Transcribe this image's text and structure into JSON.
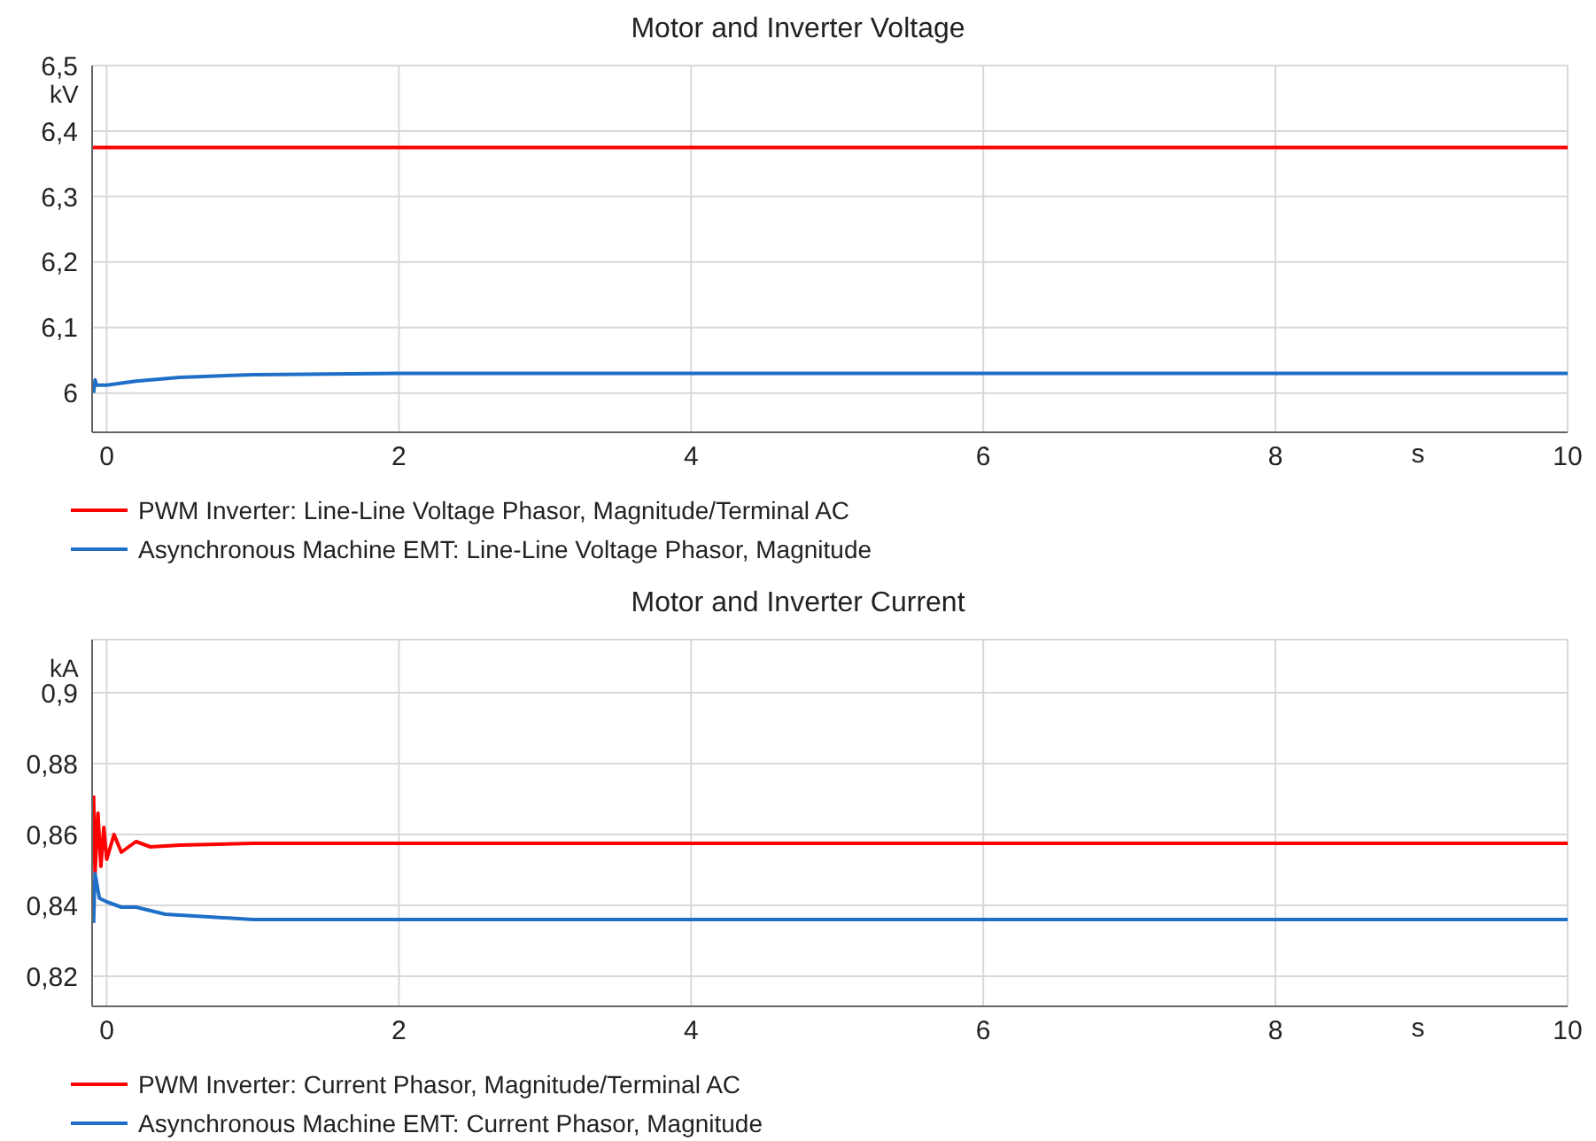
{
  "chart_data": [
    {
      "type": "line",
      "title": "Motor and Inverter Voltage",
      "xlabel": "s",
      "ylabel": "kV",
      "xlim": [
        -0.1,
        10
      ],
      "xticks": [
        0,
        2,
        4,
        6,
        8,
        10
      ],
      "ylim": [
        5.94,
        6.5
      ],
      "yticks": [
        {
          "value": 6,
          "label": "6"
        },
        {
          "value": 6.1,
          "label": "6,1"
        },
        {
          "value": 6.2,
          "label": "6,2"
        },
        {
          "value": 6.3,
          "label": "6,3"
        },
        {
          "value": 6.4,
          "label": "6,4"
        },
        {
          "value": 6.5,
          "label": "6,5"
        }
      ],
      "grid": true,
      "legend": "bottom",
      "marker": "none",
      "line_style": "solid",
      "series": [
        {
          "name": "PWM Inverter: Line-Line Voltage Phasor, Magnitude/Terminal AC",
          "color": "#ff0000",
          "x": [
            -0.1,
            10
          ],
          "values": [
            6.375,
            6.375
          ]
        },
        {
          "name": "Asynchronous Machine EMT: Line-Line Voltage Phasor, Magnitude",
          "color": "#1f6fc8",
          "x": [
            -0.09,
            -0.08,
            -0.07,
            0,
            0.2,
            0.5,
            1,
            2,
            10
          ],
          "values": [
            6.0,
            6.02,
            6.012,
            6.012,
            6.018,
            6.024,
            6.028,
            6.03,
            6.03
          ]
        }
      ]
    },
    {
      "type": "line",
      "title": "Motor and Inverter Current",
      "xlabel": "s",
      "ylabel": "kA",
      "xlim": [
        -0.1,
        10
      ],
      "xticks": [
        0,
        2,
        4,
        6,
        8,
        10
      ],
      "ylim": [
        0.8115,
        0.915
      ],
      "yticks": [
        {
          "value": 0.82,
          "label": "0,82"
        },
        {
          "value": 0.84,
          "label": "0,84"
        },
        {
          "value": 0.86,
          "label": "0,86"
        },
        {
          "value": 0.88,
          "label": "0,88"
        },
        {
          "value": 0.9,
          "label": "0,9"
        }
      ],
      "grid": true,
      "legend": "bottom",
      "marker": "none",
      "line_style": "solid",
      "series": [
        {
          "name": "PWM Inverter: Current Phasor, Magnitude/Terminal AC",
          "color": "#ff0000",
          "x": [
            -0.09,
            -0.08,
            -0.06,
            -0.04,
            -0.02,
            0,
            0.05,
            0.1,
            0.2,
            0.3,
            0.5,
            1,
            10
          ],
          "values": [
            0.871,
            0.849,
            0.866,
            0.851,
            0.862,
            0.853,
            0.86,
            0.855,
            0.858,
            0.8565,
            0.857,
            0.8575,
            0.8575
          ]
        },
        {
          "name": "Asynchronous Machine EMT: Current Phasor, Magnitude",
          "color": "#1f6fc8",
          "x": [
            -0.09,
            -0.08,
            -0.05,
            0,
            0.1,
            0.2,
            0.4,
            0.6,
            1,
            2,
            10
          ],
          "values": [
            0.835,
            0.849,
            0.842,
            0.841,
            0.8395,
            0.8395,
            0.8375,
            0.837,
            0.836,
            0.836,
            0.836
          ]
        }
      ]
    }
  ]
}
